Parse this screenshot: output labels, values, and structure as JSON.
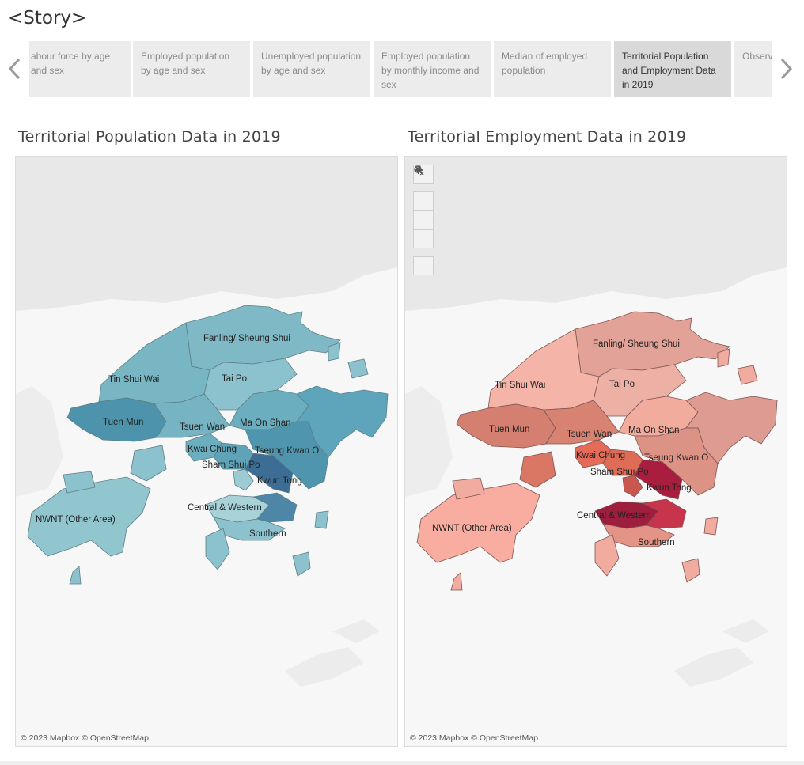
{
  "story": {
    "title": "<Story>",
    "points": [
      {
        "label": "abour force by age and sex",
        "active": false
      },
      {
        "label": "Employed population by age and sex",
        "active": false
      },
      {
        "label": "Unemployed population by age and sex",
        "active": false
      },
      {
        "label": "Employed population by monthly income and sex",
        "active": false
      },
      {
        "label": "Median of employed population",
        "active": false
      },
      {
        "label": "Territorial Population and Employment Data in 2019",
        "active": true
      },
      {
        "label": "Observ... Geogra...",
        "active": false
      }
    ]
  },
  "left_sheet": {
    "title": "Territorial Population Data in 2019",
    "attribution": "© 2023 Mapbox © OpenStreetMap",
    "districts": [
      "Fanling/ Sheung Shui",
      "Tin Shui Wai",
      "Tai Po",
      "Tuen Mun",
      "Tsuen Wan",
      "Ma On Shan",
      "Kwai Chung",
      "Tseung Kwan O",
      "Sham Shui Po",
      "Kwun Tong",
      "NWNT (Other Area)",
      "Central & Western",
      "Southern"
    ]
  },
  "right_sheet": {
    "title": "Territorial Employment Data in 2019",
    "attribution": "© 2023 Mapbox © OpenStreetMap",
    "districts": [
      "Fanling/ Sheung Shui",
      "Tin Shui Wai",
      "Tai Po",
      "Tuen Mun",
      "Tsuen Wan",
      "Ma On Shan",
      "Kwai Chung",
      "Tseung Kwan O",
      "Sham Shui Po",
      "Kwun Tong",
      "NWNT (Other Area)",
      "Central & Western",
      "Southern"
    ]
  },
  "map_tools": [
    "search-icon",
    "zoom-in-icon",
    "zoom-out-icon",
    "pin-icon",
    "expand-arrow-icon"
  ],
  "colors": {
    "population_light": "#a8d3d9",
    "population_dark": "#3f7fa6",
    "employment_light": "#f6b3a8",
    "employment_dark": "#a81c3f"
  }
}
